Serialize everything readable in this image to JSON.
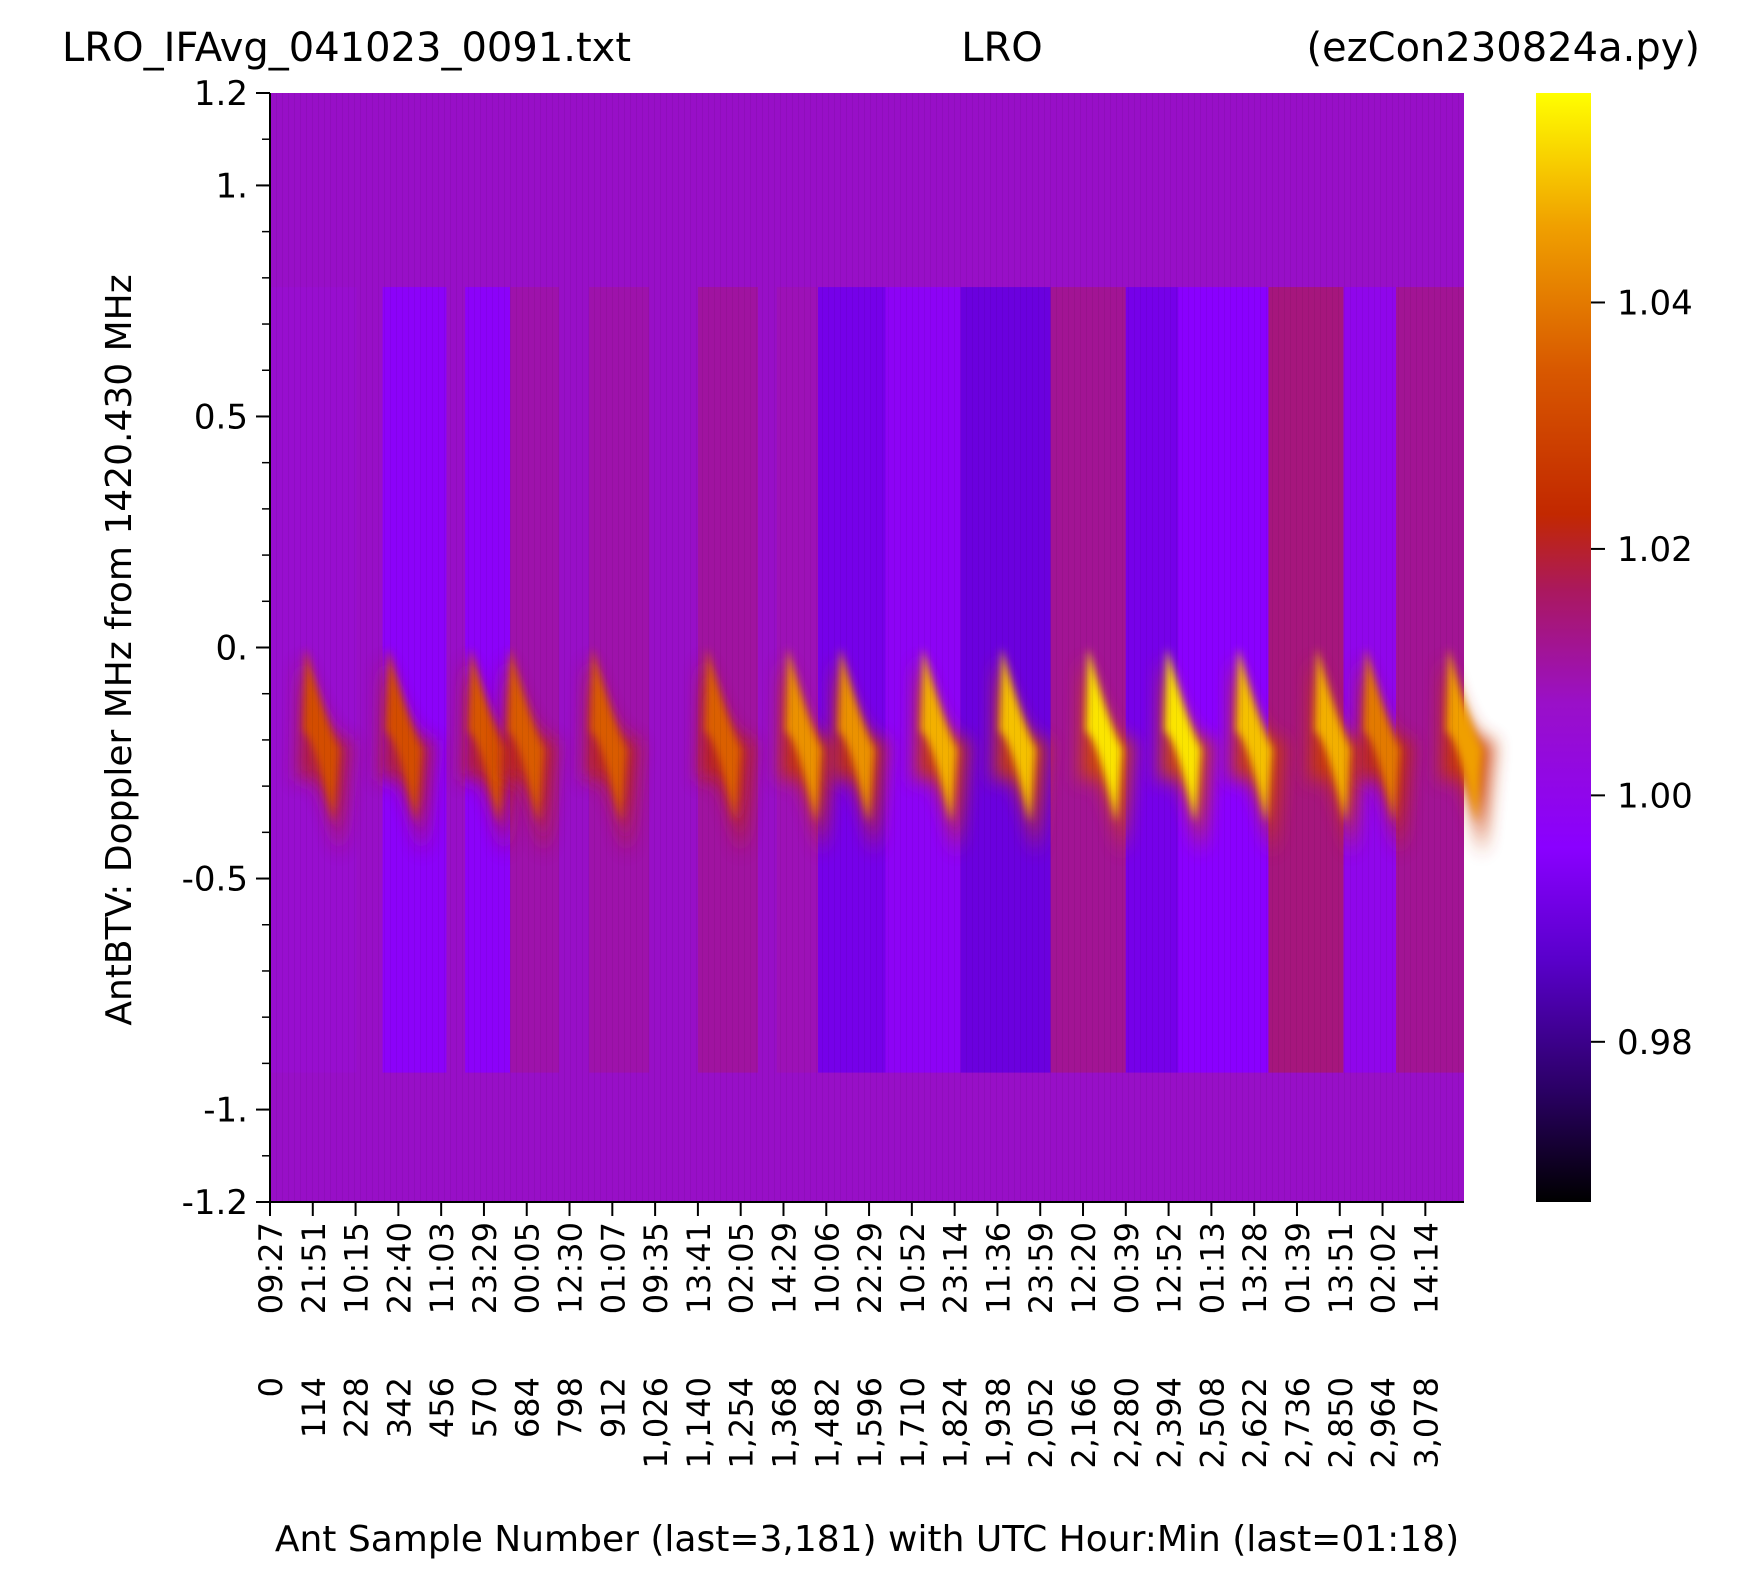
{
  "chart_data": {
    "type": "heatmap",
    "title_left": "LRO_IFAvg_041023_0091.txt",
    "title_center": "LRO",
    "title_right": "(ezCon230824a.py)",
    "xlabel": "Ant Sample Number (last=3,181) with UTC Hour:Min (last=01:18)",
    "ylabel": "AntBTV:  Doppler MHz from 1420.430 MHz",
    "xlim": [
      0,
      3181
    ],
    "ylim": [
      -1.2,
      1.2
    ],
    "x_ticks": [
      {
        "sample": "0",
        "utc": "09:27"
      },
      {
        "sample": "114",
        "utc": "21:51"
      },
      {
        "sample": "228",
        "utc": "10:15"
      },
      {
        "sample": "342",
        "utc": "22:40"
      },
      {
        "sample": "456",
        "utc": "11:03"
      },
      {
        "sample": "570",
        "utc": "23:29"
      },
      {
        "sample": "684",
        "utc": "00:05"
      },
      {
        "sample": "798",
        "utc": "12:30"
      },
      {
        "sample": "912",
        "utc": "01:07"
      },
      {
        "sample": "1,026",
        "utc": "09:35"
      },
      {
        "sample": "1,140",
        "utc": "13:41"
      },
      {
        "sample": "1,254",
        "utc": "02:05"
      },
      {
        "sample": "1,368",
        "utc": "14:29"
      },
      {
        "sample": "1,482",
        "utc": "10:06"
      },
      {
        "sample": "1,596",
        "utc": "22:29"
      },
      {
        "sample": "1,710",
        "utc": "10:52"
      },
      {
        "sample": "1,824",
        "utc": "23:14"
      },
      {
        "sample": "1,938",
        "utc": "11:36"
      },
      {
        "sample": "2,052",
        "utc": "23:59"
      },
      {
        "sample": "2,166",
        "utc": "12:20"
      },
      {
        "sample": "2,280",
        "utc": "00:39"
      },
      {
        "sample": "2,394",
        "utc": "12:52"
      },
      {
        "sample": "2,508",
        "utc": "01:13"
      },
      {
        "sample": "2,622",
        "utc": "13:28"
      },
      {
        "sample": "2,736",
        "utc": "01:39"
      },
      {
        "sample": "2,850",
        "utc": "13:51"
      },
      {
        "sample": "2,964",
        "utc": "02:02"
      },
      {
        "sample": "3,078",
        "utc": "14:14"
      }
    ],
    "y_ticks": [
      {
        "value": 1.2,
        "label": "1.2"
      },
      {
        "value": 1.0,
        "label": "1."
      },
      {
        "value": 0.5,
        "label": "0.5"
      },
      {
        "value": 0.0,
        "label": "0."
      },
      {
        "value": -0.5,
        "label": "-0.5"
      },
      {
        "value": -1.0,
        "label": "-1."
      },
      {
        "value": -1.2,
        "label": "-1.2"
      }
    ],
    "colorbar": {
      "colormap": "gnuplot",
      "range": [
        0.967,
        1.057
      ],
      "ticks": [
        {
          "value": 0.98,
          "label": "0.98"
        },
        {
          "value": 1.0,
          "label": "1.00"
        },
        {
          "value": 1.02,
          "label": "1.02"
        },
        {
          "value": 1.04,
          "label": "1.04"
        }
      ]
    },
    "background_value": 1.0,
    "outer_band_mhz": [
      -0.92,
      0.78
    ],
    "sessions": [
      {
        "x": [
          0,
          230
        ],
        "band": 1.006,
        "peak_x": 105,
        "peak": 1.032
      },
      {
        "x": [
          300,
          470
        ],
        "band": 0.997,
        "peak_x": 325,
        "peak": 1.032
      },
      {
        "x": [
          520,
          640
        ],
        "band": 0.997,
        "peak_x": 545,
        "peak": 1.034
      },
      {
        "x": [
          640,
          770
        ],
        "band": 1.01,
        "peak_x": 650,
        "peak": 1.035
      },
      {
        "x": [
          850,
          1010
        ],
        "band": 1.01,
        "peak_x": 870,
        "peak": 1.035
      },
      {
        "x": [
          1140,
          1300
        ],
        "band": 1.011,
        "peak_x": 1175,
        "peak": 1.036
      },
      {
        "x": [
          1350,
          1460
        ],
        "band": 1.009,
        "peak_x": 1390,
        "peak": 1.044
      },
      {
        "x": [
          1460,
          1640
        ],
        "band": 0.992,
        "peak_x": 1530,
        "peak": 1.044
      },
      {
        "x": [
          1640,
          1840
        ],
        "band": 0.998,
        "peak_x": 1750,
        "peak": 1.048
      },
      {
        "x": [
          1840,
          2080
        ],
        "band": 0.99,
        "peak_x": 1960,
        "peak": 1.05
      },
      {
        "x": [
          2080,
          2280
        ],
        "band": 1.012,
        "peak_x": 2190,
        "peak": 1.054
      },
      {
        "x": [
          2280,
          2420
        ],
        "band": 0.992,
        "peak_x": 2400,
        "peak": 1.054
      },
      {
        "x": [
          2420,
          2660
        ],
        "band": 0.996,
        "peak_x": 2590,
        "peak": 1.05
      },
      {
        "x": [
          2660,
          2860
        ],
        "band": 1.014,
        "peak_x": 2800,
        "peak": 1.048
      },
      {
        "x": [
          2860,
          3000
        ],
        "band": 1.0,
        "peak_x": 2930,
        "peak": 1.04
      },
      {
        "x": [
          3000,
          3181
        ],
        "band": 1.012,
        "peak_x": 3150,
        "peak": 1.046
      }
    ]
  }
}
